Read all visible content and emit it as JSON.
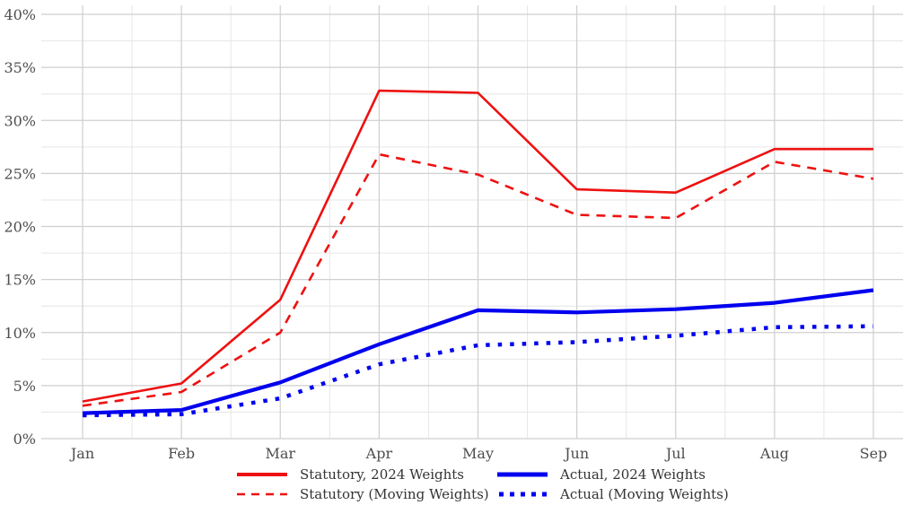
{
  "chart_data": {
    "type": "line",
    "title": "",
    "xlabel": "",
    "ylabel": "",
    "categories": [
      "Jan",
      "Feb",
      "Mar",
      "Apr",
      "May",
      "Jun",
      "Jul",
      "Aug",
      "Sep"
    ],
    "y_ticks": [
      "0%",
      "5%",
      "10%",
      "15%",
      "20%",
      "25%",
      "30%",
      "35%",
      "40%"
    ],
    "ylim": [
      0,
      40
    ],
    "grid": true,
    "legend_position": "bottom",
    "series": [
      {
        "name": "Statutory, 2024 Weights",
        "color": "#ee1111",
        "style": "solid-thin",
        "values": [
          3.5,
          5.2,
          13.1,
          32.8,
          32.6,
          23.5,
          23.2,
          27.3,
          27.3
        ]
      },
      {
        "name": "Statutory (Moving Weights)",
        "color": "#ee1111",
        "style": "dashed",
        "values": [
          3.1,
          4.4,
          10.0,
          26.8,
          24.9,
          21.1,
          20.8,
          26.1,
          24.5
        ]
      },
      {
        "name": "Actual, 2024 Weights",
        "color": "#0000ee",
        "style": "solid-thick",
        "values": [
          2.4,
          2.7,
          5.3,
          8.9,
          12.1,
          11.9,
          12.2,
          12.8,
          14.0
        ]
      },
      {
        "name": "Actual (Moving Weights)",
        "color": "#0000ee",
        "style": "dotted",
        "values": [
          2.2,
          2.3,
          3.8,
          7.0,
          8.8,
          9.1,
          9.7,
          10.5,
          10.6
        ]
      }
    ]
  }
}
